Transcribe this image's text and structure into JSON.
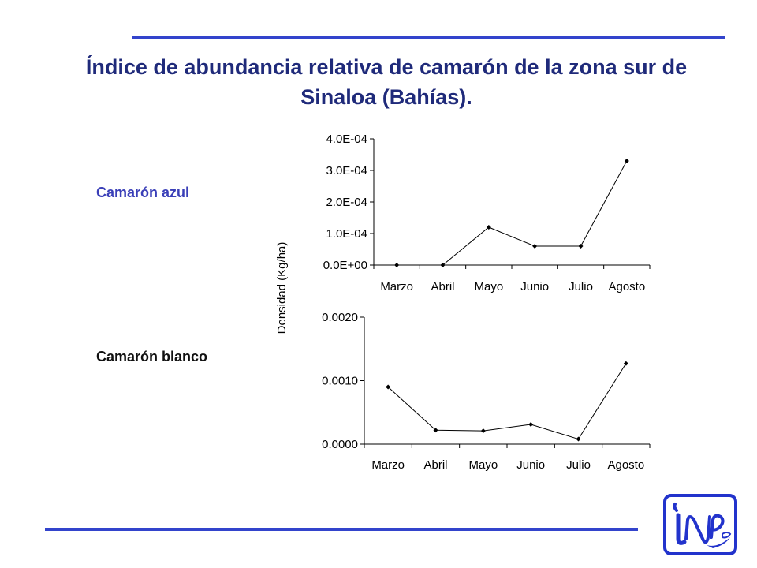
{
  "title": "Índice de abundancia relativa de camarón de la zona sur de Sinaloa (Bahías).",
  "labels": {
    "azul": "Camarón azul",
    "blanco": "Camarón blanco"
  },
  "colors": {
    "rule": "#3344cc",
    "title": "#1f2a7a",
    "azul_label": "#3a3fb8",
    "logo": "#2233cc"
  },
  "logo": {
    "icon": "inp-logo-icon"
  },
  "chart_data": [
    {
      "type": "line",
      "title": "",
      "categories": [
        "Marzo",
        "Abril",
        "Mayo",
        "Junio",
        "Julio",
        "Agosto"
      ],
      "values": [
        0.0,
        0.0,
        0.00012,
        6e-05,
        6e-05,
        0.00033
      ],
      "ylabel": "Densidad   (Kg/ha)",
      "ylim": [
        0,
        0.0004
      ],
      "yticks": [
        "0.0E+00",
        "1.0E-04",
        "2.0E-04",
        "3.0E-04",
        "4.0E-04"
      ],
      "grid": false
    },
    {
      "type": "line",
      "title": "",
      "categories": [
        "Marzo",
        "Abril",
        "Mayo",
        "Junio",
        "Julio",
        "Agosto"
      ],
      "values": [
        0.0009,
        0.00022,
        0.00021,
        0.00031,
        8e-05,
        0.00127
      ],
      "ylim": [
        0,
        0.002
      ],
      "yticks": [
        "0.0000",
        "0.0010",
        "0.0020"
      ],
      "grid": false
    }
  ]
}
